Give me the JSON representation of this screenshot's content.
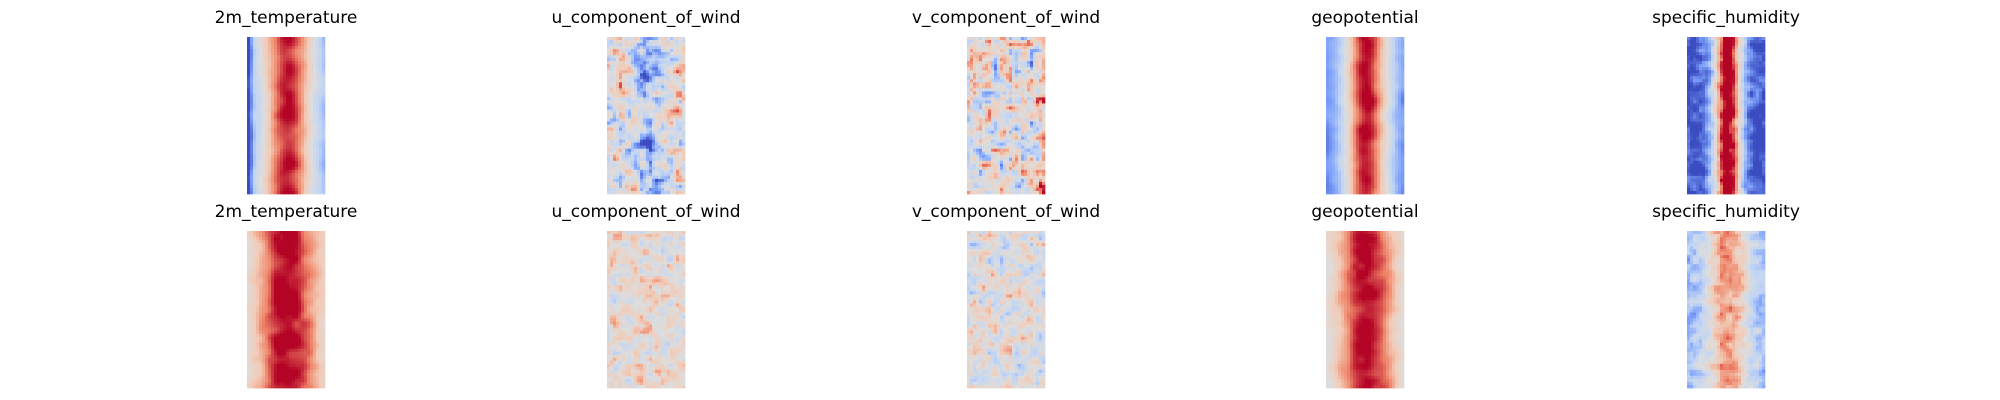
{
  "chart_data": {
    "type": "heatmap",
    "layout": {
      "rows": 2,
      "cols": 5
    },
    "colormap": "coolwarm",
    "colormap_colors": [
      "#3b4cc0",
      "#7b9ff9",
      "#c0d4f5",
      "#dddddd",
      "#f2cbb7",
      "#ee8468",
      "#b40426"
    ],
    "axes_visible": false,
    "panels": [
      {
        "title": "2m_temperature",
        "row": 0,
        "col": 0,
        "pattern": "temp"
      },
      {
        "title": "u_component_of_wind",
        "row": 0,
        "col": 1,
        "pattern": "wind_u"
      },
      {
        "title": "v_component_of_wind",
        "row": 0,
        "col": 2,
        "pattern": "wind_v"
      },
      {
        "title": "geopotential",
        "row": 0,
        "col": 3,
        "pattern": "geo"
      },
      {
        "title": "specific_humidity",
        "row": 0,
        "col": 4,
        "pattern": "hum"
      },
      {
        "title": "2m_temperature",
        "row": 1,
        "col": 0,
        "pattern": "temp_smooth"
      },
      {
        "title": "u_component_of_wind",
        "row": 1,
        "col": 1,
        "pattern": "wind_faint"
      },
      {
        "title": "v_component_of_wind",
        "row": 1,
        "col": 2,
        "pattern": "wind_faint_v"
      },
      {
        "title": "geopotential",
        "row": 1,
        "col": 3,
        "pattern": "geo_smooth"
      },
      {
        "title": "specific_humidity",
        "row": 1,
        "col": 4,
        "pattern": "hum_faint"
      }
    ]
  }
}
